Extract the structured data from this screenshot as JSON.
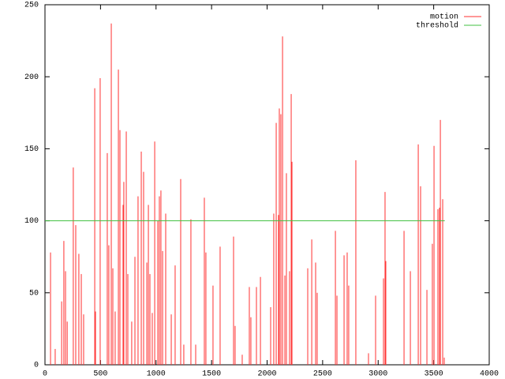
{
  "chart_data": {
    "type": "impulse",
    "xlim": [
      0,
      4000
    ],
    "xticks": [
      0,
      500,
      1000,
      1500,
      2000,
      2500,
      3000,
      3500,
      4000
    ],
    "ylim": [
      0,
      250
    ],
    "yticks": [
      0,
      50,
      100,
      150,
      200,
      250
    ],
    "legend": "top-right",
    "series": [
      {
        "name": "motion",
        "color": "#ff3030",
        "style": "impulses",
        "x": [
          50,
          92,
          150,
          170,
          185,
          200,
          255,
          277,
          305,
          327,
          348,
          448,
          455,
          497,
          561,
          575,
          597,
          611,
          632,
          661,
          675,
          703,
          710,
          732,
          746,
          781,
          810,
          838,
          867,
          888,
          917,
          931,
          945,
          966,
          988,
          1016,
          1030,
          1044,
          1059,
          1087,
          1137,
          1172,
          1222,
          1250,
          1314,
          1357,
          1435,
          1449,
          1513,
          1577,
          1698,
          1712,
          1776,
          1840,
          1854,
          1904,
          1940,
          2032,
          2060,
          2082,
          2103,
          2110,
          2124,
          2139,
          2160,
          2174,
          2202,
          2217,
          2224,
          2366,
          2402,
          2437,
          2451,
          2615,
          2629,
          2693,
          2721,
          2735,
          2799,
          2913,
          2977,
          3048,
          3062,
          3069,
          3233,
          3290,
          3361,
          3382,
          3439,
          3488,
          3503,
          3538,
          3552,
          3560,
          3581,
          3595
        ],
        "values": [
          78,
          11,
          44,
          86,
          65,
          30,
          137,
          97,
          77,
          63,
          35,
          192,
          37,
          199,
          147,
          83,
          237,
          67,
          37,
          205,
          163,
          111,
          127,
          162,
          63,
          30,
          75,
          117,
          148,
          134,
          71,
          111,
          63,
          36,
          155,
          100,
          117,
          121,
          79,
          105,
          35,
          69,
          129,
          14,
          101,
          14,
          116,
          78,
          55,
          82,
          89,
          27,
          7,
          54,
          33,
          54,
          61,
          40,
          105,
          168,
          104,
          178,
          174,
          228,
          62,
          133,
          65,
          188,
          141,
          67,
          87,
          71,
          50,
          93,
          48,
          76,
          78,
          55,
          142,
          8,
          48,
          60,
          120,
          72,
          93,
          65,
          153,
          124,
          52,
          84,
          152,
          108,
          109,
          170,
          115,
          5
        ]
      },
      {
        "name": "threshold",
        "color": "#40c040",
        "style": "lines",
        "x": [
          0,
          3600
        ],
        "values": [
          100,
          100
        ]
      }
    ]
  }
}
